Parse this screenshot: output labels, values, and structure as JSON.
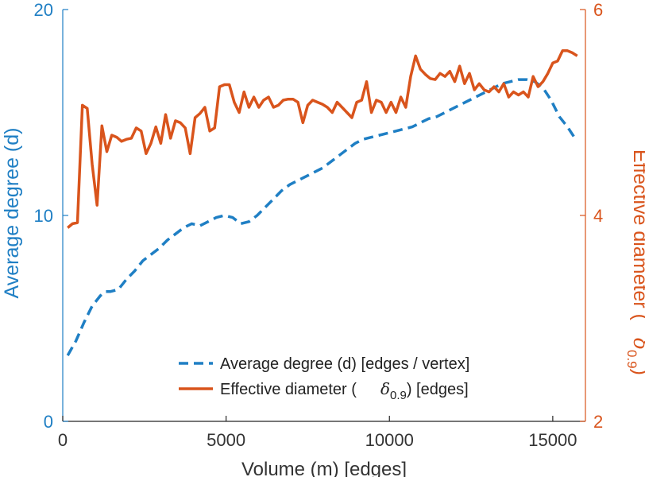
{
  "chart_data": {
    "type": "line",
    "xlabel": "Volume (m) [edges]",
    "xlim": [
      0,
      16000
    ],
    "x_ticks": [
      "0",
      "5000",
      "10000",
      "15000"
    ],
    "y_left": {
      "label": "Average degree (d)",
      "lim": [
        0,
        20
      ],
      "ticks": [
        "0",
        "10",
        "20"
      ],
      "color": "#1f7fc4"
    },
    "y_right": {
      "label": "Effective diameter (",
      "symbol": "δ",
      "subscript": "0.9",
      "label_end": ")",
      "lim": [
        2,
        6
      ],
      "ticks": [
        "2",
        "4",
        "6"
      ],
      "color": "#d9541c"
    },
    "legend": {
      "location": "bottom-right",
      "entries": [
        {
          "text": "Average degree (d) [edges / vertex]"
        },
        {
          "prefix": "Effective diameter (",
          "symbol": "δ",
          "subscript": "0.9",
          "suffix": ") [edges]"
        }
      ]
    },
    "series": [
      {
        "name": "Average degree (d) [edges / vertex]",
        "axis": "left",
        "style": "dashed",
        "color": "#1f7fc4",
        "x": [
          150,
          400,
          650,
          900,
          1150,
          1300,
          1450,
          1700,
          1950,
          2200,
          2450,
          2700,
          2950,
          3200,
          3450,
          3700,
          3950,
          4200,
          4450,
          4700,
          4950,
          5200,
          5450,
          5700,
          5950,
          6200,
          6450,
          6700,
          6950,
          7200,
          7450,
          7700,
          7950,
          8200,
          8450,
          8700,
          8950,
          9200,
          9450,
          9700,
          9950,
          10200,
          10450,
          10700,
          10950,
          11200,
          11450,
          11700,
          11950,
          12200,
          12450,
          12700,
          12950,
          13200,
          13450,
          13700,
          13950,
          14200,
          14450,
          14700,
          14950,
          15200,
          15450,
          15700
        ],
        "values": [
          3.2,
          3.9,
          4.8,
          5.6,
          6.1,
          6.3,
          6.3,
          6.4,
          6.9,
          7.3,
          7.8,
          8.1,
          8.4,
          8.8,
          9.1,
          9.4,
          9.6,
          9.5,
          9.7,
          9.9,
          10.0,
          9.9,
          9.6,
          9.7,
          10.0,
          10.4,
          10.8,
          11.2,
          11.5,
          11.7,
          11.9,
          12.1,
          12.3,
          12.6,
          12.9,
          13.2,
          13.5,
          13.7,
          13.8,
          13.9,
          14.0,
          14.1,
          14.2,
          14.3,
          14.5,
          14.7,
          14.8,
          15.0,
          15.2,
          15.4,
          15.6,
          15.8,
          16.0,
          16.2,
          16.4,
          16.5,
          16.6,
          16.6,
          16.5,
          16.2,
          15.6,
          14.8,
          14.3,
          13.7
        ]
      },
      {
        "name": "Effective diameter (δ0.9) [edges]",
        "axis": "right",
        "style": "solid",
        "color": "#d9541c",
        "x": [
          150,
          300,
          450,
          600,
          750,
          900,
          1050,
          1200,
          1350,
          1500,
          1650,
          1800,
          1950,
          2100,
          2250,
          2400,
          2550,
          2700,
          2850,
          3000,
          3150,
          3300,
          3450,
          3600,
          3750,
          3900,
          4050,
          4200,
          4350,
          4500,
          4650,
          4800,
          4950,
          5100,
          5250,
          5400,
          5550,
          5700,
          5850,
          6000,
          6150,
          6300,
          6450,
          6600,
          6750,
          6900,
          7050,
          7200,
          7350,
          7500,
          7650,
          7800,
          7950,
          8100,
          8250,
          8400,
          8550,
          8700,
          8850,
          9000,
          9150,
          9300,
          9450,
          9600,
          9750,
          9900,
          10050,
          10200,
          10350,
          10500,
          10650,
          10800,
          10950,
          11100,
          11250,
          11400,
          11550,
          11700,
          11850,
          12000,
          12150,
          12300,
          12450,
          12600,
          12750,
          12900,
          13050,
          13200,
          13350,
          13500,
          13650,
          13800,
          13950,
          14100,
          14250,
          14400,
          14550,
          14700,
          14850,
          15000,
          15150,
          15300,
          15450,
          15600,
          15750
        ],
        "values": [
          3.88,
          3.92,
          3.93,
          5.07,
          5.04,
          4.5,
          4.1,
          4.87,
          4.62,
          4.78,
          4.76,
          4.72,
          4.74,
          4.75,
          4.85,
          4.82,
          4.6,
          4.7,
          4.86,
          4.7,
          4.98,
          4.75,
          4.92,
          4.9,
          4.85,
          4.6,
          4.95,
          4.99,
          5.05,
          4.82,
          4.85,
          5.25,
          5.27,
          5.27,
          5.1,
          5.0,
          5.2,
          5.05,
          5.15,
          5.05,
          5.12,
          5.15,
          5.05,
          5.07,
          5.12,
          5.13,
          5.13,
          5.1,
          4.9,
          5.07,
          5.12,
          5.1,
          5.08,
          5.05,
          5.0,
          5.1,
          5.05,
          5.0,
          4.95,
          5.1,
          5.12,
          5.3,
          5.0,
          5.12,
          5.1,
          5.0,
          5.1,
          5.0,
          5.15,
          5.05,
          5.35,
          5.55,
          5.42,
          5.37,
          5.33,
          5.32,
          5.38,
          5.35,
          5.4,
          5.3,
          5.45,
          5.28,
          5.38,
          5.22,
          5.28,
          5.22,
          5.2,
          5.25,
          5.2,
          5.28,
          5.15,
          5.2,
          5.17,
          5.2,
          5.15,
          5.35,
          5.25,
          5.3,
          5.38,
          5.48,
          5.5,
          5.6,
          5.6,
          5.58,
          5.55
        ]
      }
    ]
  }
}
